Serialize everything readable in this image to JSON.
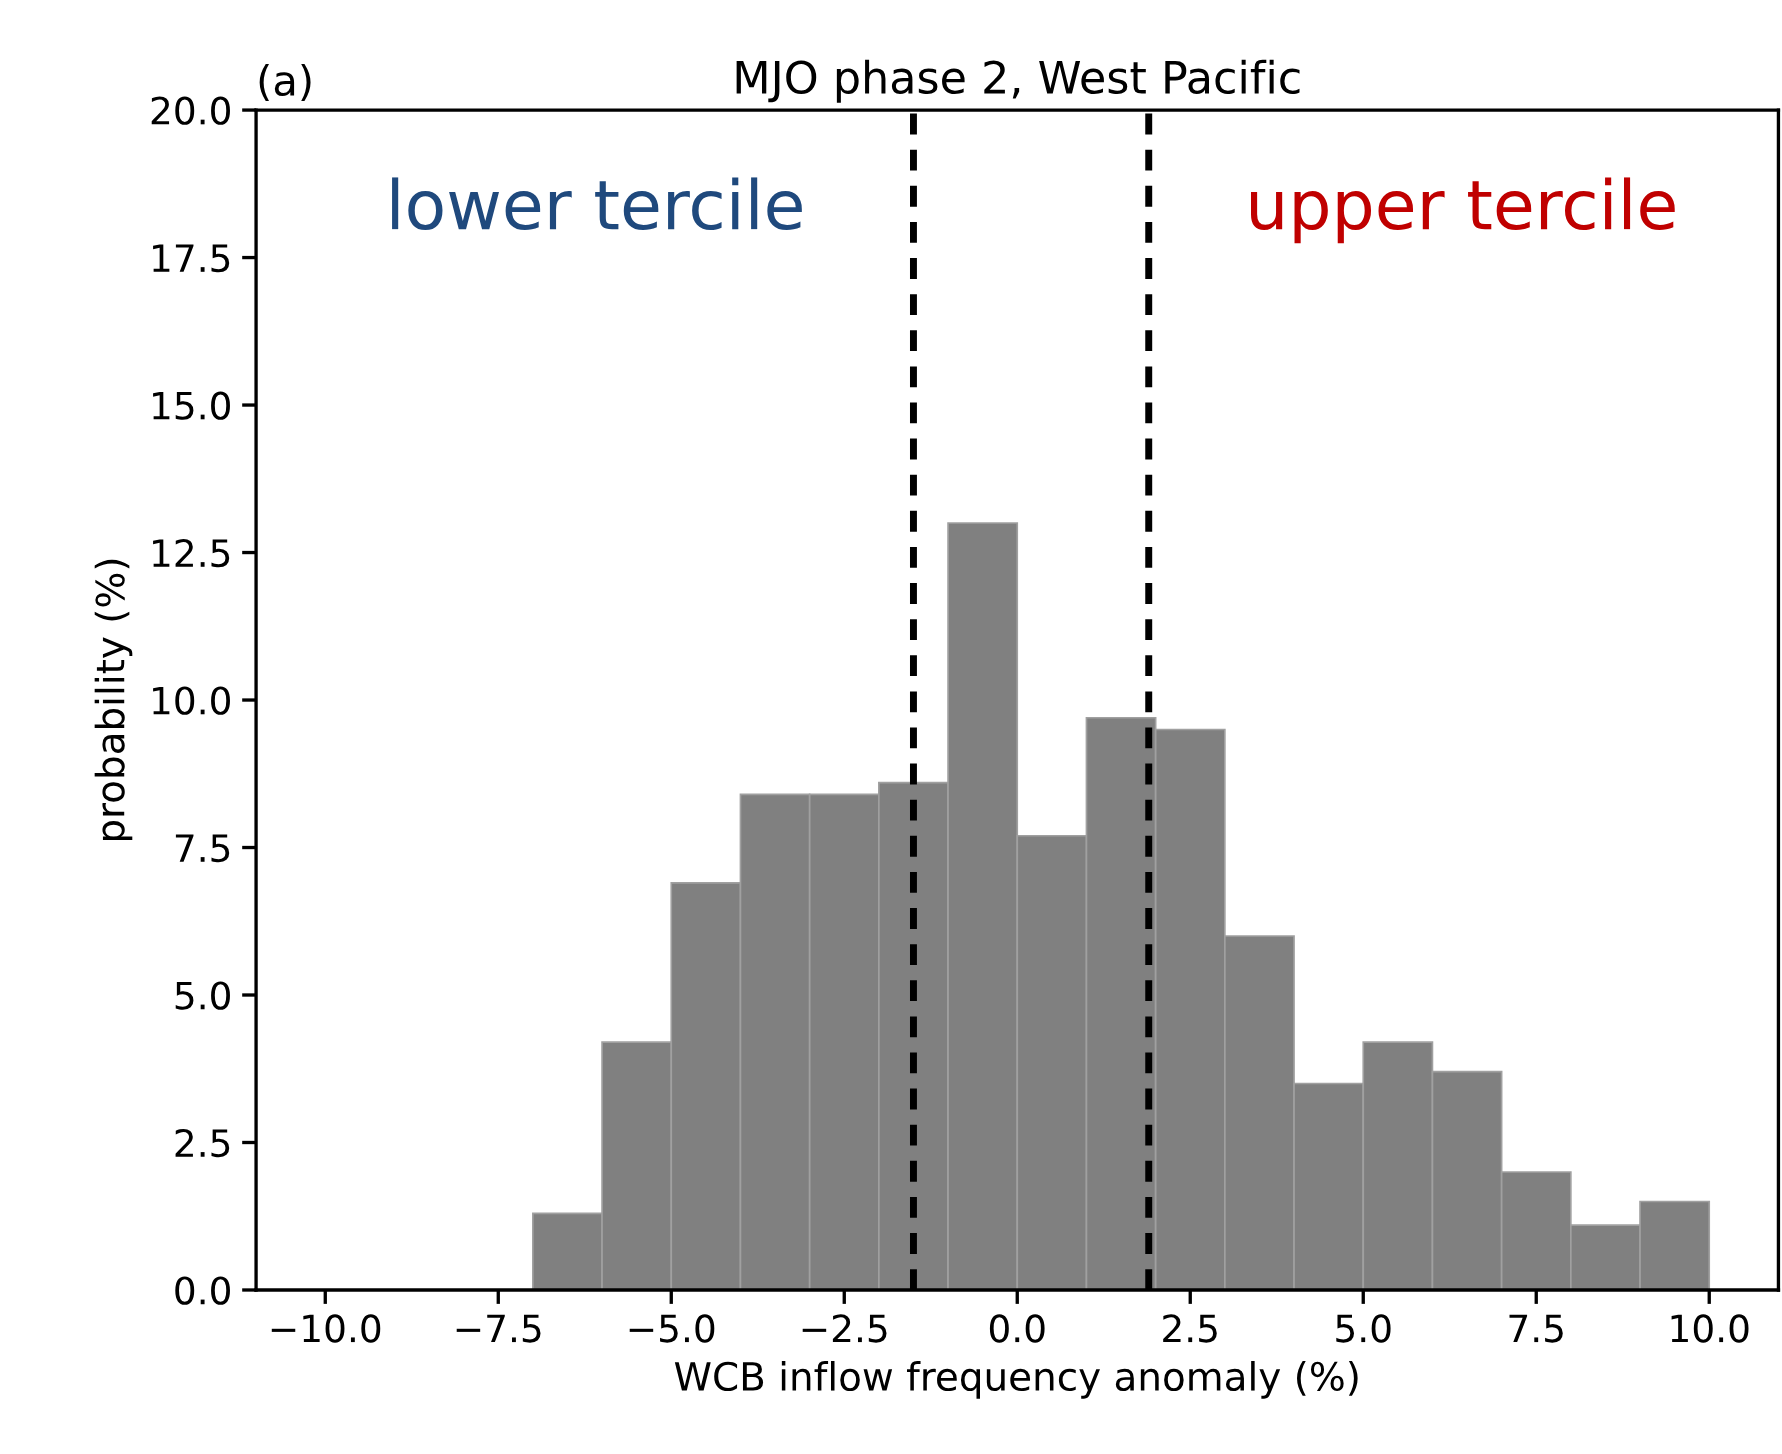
{
  "chart_data": {
    "type": "histogram",
    "title": "MJO phase 2, West Pacific",
    "xlabel": "WCB inflow frequency anomaly (%)",
    "ylabel": "probability (%)",
    "bins": [
      -7,
      -6,
      -5,
      -4,
      -3,
      -2,
      -1,
      0,
      1,
      2,
      3,
      4,
      5,
      6,
      7,
      8,
      9,
      10
    ],
    "values": [
      1.3,
      4.2,
      6.9,
      8.4,
      8.4,
      8.6,
      13.0,
      7.7,
      9.7,
      9.5,
      6.0,
      3.5,
      4.2,
      3.7,
      2.0,
      1.1,
      1.5
    ],
    "color": "#808080",
    "xlim": [
      -11,
      11
    ],
    "ylim": [
      0,
      20
    ],
    "xticks": [
      {
        "value": -10,
        "label": "−10.0"
      },
      {
        "value": -7.5,
        "label": "−7.5"
      },
      {
        "value": -5,
        "label": "−5.0"
      },
      {
        "value": -2.5,
        "label": "−2.5"
      },
      {
        "value": 0,
        "label": "0.0"
      },
      {
        "value": 2.5,
        "label": "2.5"
      },
      {
        "value": 5,
        "label": "5.0"
      },
      {
        "value": 7.5,
        "label": "7.5"
      },
      {
        "value": 10,
        "label": "10.0"
      }
    ],
    "yticks": [
      {
        "value": 0,
        "label": "0.0"
      },
      {
        "value": 2.5,
        "label": "2.5"
      },
      {
        "value": 5,
        "label": "5.0"
      },
      {
        "value": 7.5,
        "label": "7.5"
      },
      {
        "value": 10,
        "label": "10.0"
      },
      {
        "value": 12.5,
        "label": "12.5"
      },
      {
        "value": 15,
        "label": "15.0"
      },
      {
        "value": 17.5,
        "label": "17.5"
      },
      {
        "value": 20,
        "label": "20.0"
      }
    ],
    "ref_lines": [
      {
        "axis": "x",
        "value": -1.5,
        "color": "#000000",
        "line_style": "dashed"
      },
      {
        "axis": "x",
        "value": 1.9,
        "color": "#000000",
        "line_style": "dashed"
      }
    ],
    "annotations": [
      "(a)",
      "lower tercile",
      "upper tercile"
    ],
    "grid": false,
    "legend": false
  }
}
